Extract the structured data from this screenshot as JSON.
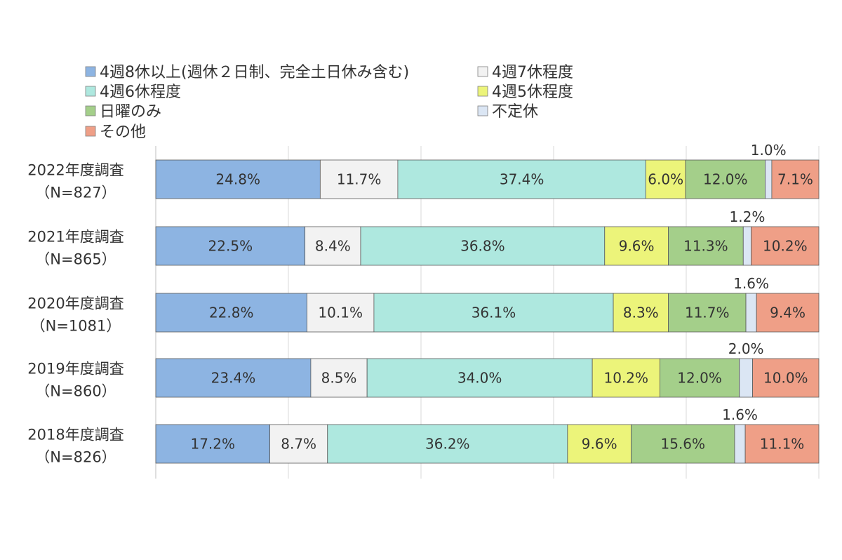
{
  "chart_data": {
    "type": "bar",
    "orientation": "horizontal",
    "stacked": true,
    "percent_stacked": true,
    "title": "",
    "xlabel": "",
    "ylabel": "",
    "xlim": [
      0,
      100
    ],
    "grid": true,
    "legend_position": "top",
    "categories": [
      {
        "label": "2022年度調査",
        "n": "（N=827）"
      },
      {
        "label": "2021年度調査",
        "n": "（N=865）"
      },
      {
        "label": "2020年度調査",
        "n": "（N=1081）"
      },
      {
        "label": "2019年度調査",
        "n": "（N=860）"
      },
      {
        "label": "2018年度調査",
        "n": "（N=826）"
      }
    ],
    "series": [
      {
        "name": "4週8休以上(週休２日制、完全土日休み含む)",
        "color": "#8db4e2",
        "values": [
          24.8,
          22.5,
          22.8,
          23.4,
          17.2
        ],
        "labels": [
          "24.8%",
          "22.5%",
          "22.8%",
          "23.4%",
          "17.2%"
        ]
      },
      {
        "name": "4週7休程度",
        "color": "#f2f2f2",
        "values": [
          11.7,
          8.4,
          10.1,
          8.5,
          8.7
        ],
        "labels": [
          "11.7%",
          "8.4%",
          "10.1%",
          "8.5%",
          "8.7%"
        ]
      },
      {
        "name": "4週6休程度",
        "color": "#aee8df",
        "values": [
          37.4,
          36.8,
          36.1,
          34.0,
          36.2
        ],
        "labels": [
          "37.4%",
          "36.8%",
          "36.1%",
          "34.0%",
          "36.2%"
        ]
      },
      {
        "name": "4週5休程度",
        "color": "#ecf47a",
        "values": [
          6.0,
          9.6,
          8.3,
          10.2,
          9.6
        ],
        "labels": [
          "6.0%",
          "9.6%",
          "8.3%",
          "10.2%",
          "9.6%"
        ]
      },
      {
        "name": "日曜のみ",
        "color": "#a4cf8a",
        "values": [
          12.0,
          11.3,
          11.7,
          12.0,
          15.6
        ],
        "labels": [
          "12.0%",
          "11.3%",
          "11.7%",
          "12.0%",
          "15.6%"
        ]
      },
      {
        "name": "不定休",
        "color": "#dbe6f4",
        "values": [
          1.0,
          1.2,
          1.6,
          2.0,
          1.6
        ],
        "labels": [
          "1.0%",
          "1.2%",
          "1.6%",
          "2.0%",
          "1.6%"
        ]
      },
      {
        "name": "その他",
        "color": "#ef9f87",
        "values": [
          7.1,
          10.2,
          9.4,
          10.0,
          11.1
        ],
        "labels": [
          "7.1%",
          "10.2%",
          "9.4%",
          "10.0%",
          "11.1%"
        ]
      }
    ]
  }
}
